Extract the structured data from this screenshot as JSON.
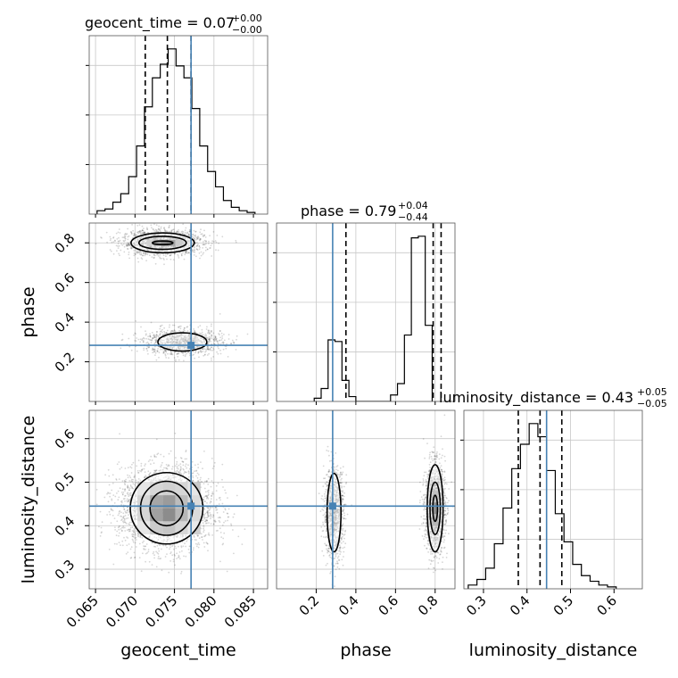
{
  "chart_data": {
    "type": "corner",
    "parameters": [
      "geocent_time",
      "phase",
      "luminosity_distance"
    ],
    "truths": {
      "geocent_time": 0.0771,
      "phase": 0.283,
      "luminosity_distance": 0.445
    },
    "truth_color": "#4682b4",
    "titles": [
      {
        "param": "geocent_time",
        "main": "geocent_time = 0.07",
        "sup": "+0.00",
        "sub": "−0.00"
      },
      {
        "param": "phase",
        "main": "phase = 0.79",
        "sup": "+0.04",
        "sub": "−0.44"
      },
      {
        "param": "luminosity_distance",
        "main": "luminosity_distance = 0.43",
        "sup": "+0.05",
        "sub": "−0.05"
      }
    ],
    "axes": {
      "geocent_time": {
        "range": [
          0.0642,
          0.0868
        ],
        "ticks": [
          "0.065",
          "0.070",
          "0.075",
          "0.080",
          "0.085"
        ],
        "tick_values": [
          0.065,
          0.07,
          0.075,
          0.08,
          0.085
        ]
      },
      "phase": {
        "range": [
          0.0,
          0.9
        ],
        "ticks": [
          "0.2",
          "0.4",
          "0.6",
          "0.8"
        ],
        "tick_values": [
          0.2,
          0.4,
          0.6,
          0.8
        ]
      },
      "luminosity_distance": {
        "range": [
          0.255,
          0.665
        ],
        "ticks": [
          "0.3",
          "0.4",
          "0.5",
          "0.6"
        ],
        "tick_values": [
          0.3,
          0.4,
          0.5,
          0.6
        ]
      }
    },
    "histograms": [
      {
        "param": "geocent_time",
        "bin_start": 0.0652,
        "bin_width": 0.001,
        "counts": [
          2,
          3,
          7,
          12,
          22,
          40,
          63,
          80,
          88,
          97,
          87,
          80,
          62,
          40,
          25,
          16,
          8,
          4,
          2,
          1
        ],
        "quantiles": [
          0.0713,
          0.0741,
          0.0771
        ]
      },
      {
        "param": "phase",
        "bin_start": 0.19,
        "bin_width": 0.035,
        "counts": [
          2,
          8,
          38,
          37,
          13,
          3,
          0,
          0,
          0,
          0,
          0,
          4,
          11,
          41,
          101,
          102,
          47
        ],
        "quantiles": [
          0.35,
          0.79,
          0.83
        ]
      },
      {
        "param": "luminosity_distance",
        "bin_start": 0.265,
        "bin_width": 0.02,
        "counts": [
          2,
          5,
          11,
          24,
          43,
          64,
          77,
          88,
          81,
          63,
          40,
          25,
          13,
          7,
          4,
          2,
          1
        ],
        "quantiles": [
          0.38,
          0.43,
          0.48
        ]
      }
    ],
    "clusters": [
      {
        "x": "geocent_time",
        "y": "phase",
        "cx": 0.0735,
        "cy": 0.8,
        "sx": 0.0026,
        "sy": 0.032,
        "n": 1500
      },
      {
        "x": "geocent_time",
        "y": "phase",
        "cx": 0.076,
        "cy": 0.3,
        "sx": 0.0025,
        "sy": 0.033,
        "n": 1100
      },
      {
        "x": "geocent_time",
        "y": "luminosity_distance",
        "cx": 0.074,
        "cy": 0.44,
        "sx": 0.003,
        "sy": 0.048,
        "n": 2800
      },
      {
        "x": "phase",
        "y": "luminosity_distance",
        "cx": 0.29,
        "cy": 0.43,
        "sx": 0.025,
        "sy": 0.05,
        "n": 1100
      },
      {
        "x": "phase",
        "y": "luminosity_distance",
        "cx": 0.8,
        "cy": 0.44,
        "sx": 0.025,
        "sy": 0.05,
        "n": 1600
      }
    ],
    "contours": [
      {
        "x": "geocent_time",
        "y": "phase",
        "cx": 0.0735,
        "cy": 0.8,
        "rx": [
          0.0013,
          0.003,
          0.004
        ],
        "ry": [
          0.009,
          0.033,
          0.05
        ]
      },
      {
        "x": "geocent_time",
        "y": "phase",
        "cx": 0.076,
        "cy": 0.3,
        "rx": [
          0.0031
        ],
        "ry": [
          0.046
        ]
      },
      {
        "x": "geocent_time",
        "y": "luminosity_distance",
        "cx": 0.074,
        "cy": 0.44,
        "rx": [
          0.0021,
          0.0033,
          0.0046
        ],
        "ry": [
          0.04,
          0.062,
          0.082
        ]
      },
      {
        "x": "phase",
        "y": "luminosity_distance",
        "cx": 0.29,
        "cy": 0.43,
        "rx": [
          0.035
        ],
        "ry": [
          0.09
        ]
      },
      {
        "x": "phase",
        "y": "luminosity_distance",
        "cx": 0.8,
        "cy": 0.44,
        "rx": [
          0.012,
          0.026,
          0.04
        ],
        "ry": [
          0.03,
          0.06,
          0.1
        ]
      }
    ],
    "density_blocks": [
      {
        "x": "geocent_time",
        "y": "phase",
        "x0": 0.0715,
        "x1": 0.076,
        "y0": 0.785,
        "y1": 0.815,
        "cells": [
          [
            0.35,
            0.75,
            1.0,
            0.8,
            0.4
          ]
        ]
      },
      {
        "x": "geocent_time",
        "y": "luminosity_distance",
        "x0": 0.0703,
        "x1": 0.0783,
        "y0": 0.38,
        "y1": 0.5,
        "cells": [
          [
            0.15,
            0.3,
            0.35,
            0.3,
            0.15
          ],
          [
            0.3,
            0.75,
            0.85,
            0.55,
            0.25
          ],
          [
            0.3,
            0.8,
            1.0,
            0.6,
            0.25
          ],
          [
            0.15,
            0.4,
            0.45,
            0.3,
            0.12
          ]
        ]
      },
      {
        "x": "phase",
        "y": "luminosity_distance",
        "x0": 0.785,
        "x1": 0.815,
        "y0": 0.4,
        "y1": 0.48,
        "cells": [
          [
            0.5
          ],
          [
            1.0
          ],
          [
            0.6
          ]
        ]
      }
    ],
    "grid": true,
    "labels": {
      "x": [
        "geocent_time",
        "phase",
        "luminosity_distance"
      ],
      "y": [
        "phase",
        "luminosity_distance"
      ]
    }
  }
}
